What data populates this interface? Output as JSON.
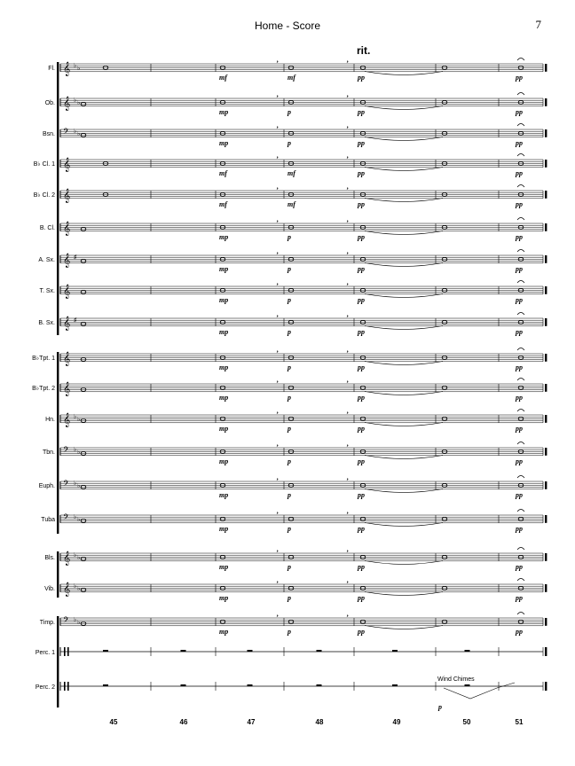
{
  "header": {
    "title": "Home - Score",
    "page_number": "7"
  },
  "tempo_marking": "rit.",
  "instruments": [
    {
      "label": "Fl.",
      "clef": "treble",
      "key": "Bb"
    },
    {
      "label": "Ob.",
      "clef": "treble",
      "key": "Bb"
    },
    {
      "label": "Bsn.",
      "clef": "bass",
      "key": "Bb"
    },
    {
      "label": "B♭ Cl. 1",
      "clef": "treble",
      "key": ""
    },
    {
      "label": "B♭ Cl. 2",
      "clef": "treble",
      "key": ""
    },
    {
      "label": "B. Cl.",
      "clef": "treble",
      "key": ""
    },
    {
      "label": "A. Sx.",
      "clef": "treble",
      "key": "G"
    },
    {
      "label": "T. Sx.",
      "clef": "treble",
      "key": ""
    },
    {
      "label": "B. Sx.",
      "clef": "treble",
      "key": "G"
    },
    {
      "label": "B♭Tpt. 1",
      "clef": "treble",
      "key": ""
    },
    {
      "label": "B♭Tpt. 2",
      "clef": "treble",
      "key": ""
    },
    {
      "label": "Hn.",
      "clef": "treble",
      "key": "Bb"
    },
    {
      "label": "Tbn.",
      "clef": "bass",
      "key": "Bb"
    },
    {
      "label": "Euph.",
      "clef": "bass",
      "key": "Bb"
    },
    {
      "label": "Tuba",
      "clef": "bass",
      "key": "Bb"
    },
    {
      "label": "Bls.",
      "clef": "treble",
      "key": "Bb"
    },
    {
      "label": "Vib.",
      "clef": "treble",
      "key": "Bb"
    },
    {
      "label": "Timp.",
      "clef": "bass",
      "key": "Bb"
    },
    {
      "label": "Perc. 1",
      "clef": "perc",
      "key": ""
    },
    {
      "label": "Perc. 2",
      "clef": "perc",
      "key": ""
    }
  ],
  "measure_numbers": [
    "45",
    "46",
    "47",
    "48",
    "49",
    "50",
    "51"
  ],
  "dynamics": {
    "mf": "mf",
    "mp": "mp",
    "p": "p",
    "pp": "pp"
  },
  "annotations": {
    "wind_chimes": "Wind Chimes"
  }
}
